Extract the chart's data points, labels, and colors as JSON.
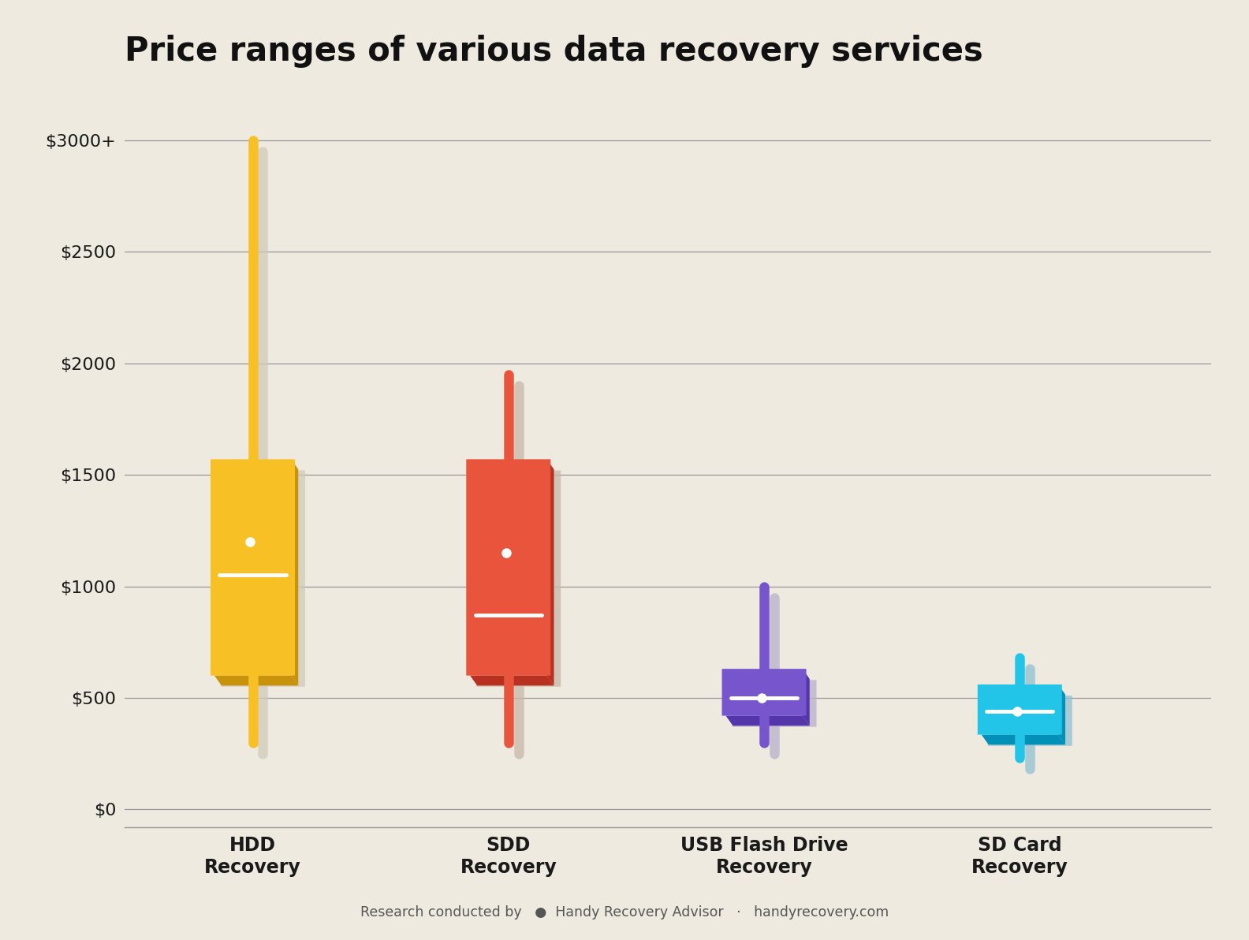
{
  "title": "Price ranges of various data recovery services",
  "background_color": "#eeeae0",
  "plot_bg_color": "#eeeae0",
  "categories": [
    "HDD\nRecovery",
    "SDD\nRecovery",
    "USB Flash Drive\nRecovery",
    "SD Card\nRecovery"
  ],
  "yticks": [
    0,
    500,
    1000,
    1500,
    2000,
    2500,
    3000
  ],
  "ytick_labels": [
    "$0",
    "$500",
    "$1000",
    "$1500",
    "$2000",
    "$2500",
    "$3000+"
  ],
  "ylim": [
    -80,
    3250
  ],
  "boxes": [
    {
      "color": "#F7C125",
      "dark_color": "#C8920A",
      "shadow_color": "#d0cab8",
      "whisker_low": 300,
      "q1": 600,
      "median": 1050,
      "mean": 1200,
      "q3": 1570,
      "whisker_high": 3000
    },
    {
      "color": "#E8553C",
      "dark_color": "#B83020",
      "shadow_color": "#c8b8a8",
      "whisker_low": 300,
      "q1": 600,
      "median": 870,
      "mean": 1150,
      "q3": 1570,
      "whisker_high": 1950
    },
    {
      "color": "#7755CC",
      "dark_color": "#5535AA",
      "shadow_color": "#b8b0cc",
      "whisker_low": 300,
      "q1": 420,
      "median": 500,
      "mean": 500,
      "q3": 630,
      "whisker_high": 1000
    },
    {
      "color": "#22C5E8",
      "dark_color": "#0090B8",
      "shadow_color": "#90c0d0",
      "whisker_low": 230,
      "q1": 335,
      "median": 440,
      "mean": 440,
      "q3": 560,
      "whisker_high": 680
    }
  ],
  "footer_text": "Research conducted by",
  "footer_brand": "Handy Recovery Advisor",
  "footer_url": "handyrecovery.com",
  "title_fontsize": 30,
  "axis_fontsize": 17,
  "tick_fontsize": 16
}
